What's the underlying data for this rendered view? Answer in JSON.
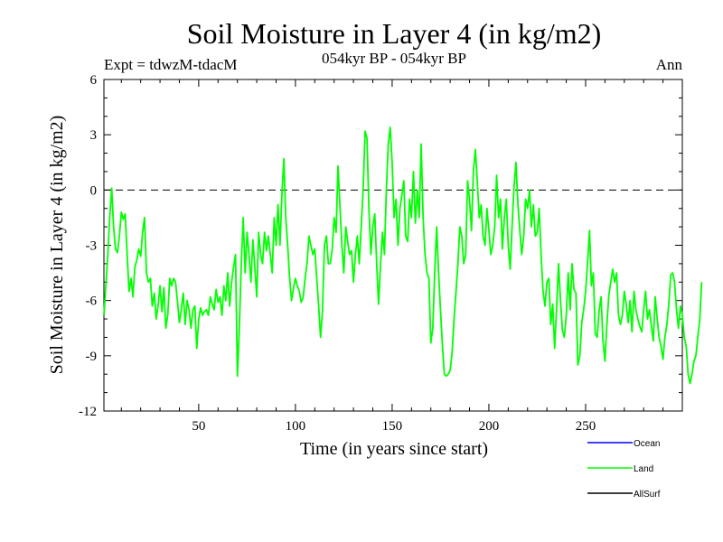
{
  "chart_data": {
    "type": "line",
    "title": "Soil Moisture in Layer 4 (in kg/m2)",
    "subtitle": "054kyr BP - 054kyr BP",
    "experiment": "Expt = tdwzM-tdacM",
    "season": "Ann",
    "xlabel": "Time (in years since start)",
    "ylabel": "Soil Moisture in Layer 4 (in kg/m2)",
    "xlim": [
      1,
      300
    ],
    "ylim": [
      -12,
      6
    ],
    "x_ticks": [
      50,
      100,
      150,
      200,
      250
    ],
    "y_ticks": [
      -12,
      -9,
      -6,
      -3,
      0,
      3,
      6
    ],
    "reference_line": 0,
    "grid": false,
    "legend_position": "bottom-right",
    "legend": [
      {
        "name": "Ocean",
        "color": "#0000ff"
      },
      {
        "name": "Land",
        "color": "#00ff00"
      },
      {
        "name": "AllSurf",
        "color": "#000000"
      }
    ],
    "series": [
      {
        "name": "Land",
        "color": "#00ff00",
        "x_start": 1,
        "x_step": 1,
        "values": [
          -6.8,
          -5.2,
          -3.5,
          -1.5,
          0.1,
          -2.0,
          -3.2,
          -3.4,
          -2.5,
          -1.2,
          -1.6,
          -1.3,
          -3.5,
          -5.5,
          -4.8,
          -5.8,
          -4.2,
          -3.8,
          -3.2,
          -3.6,
          -2.3,
          -1.5,
          -4.5,
          -5.0,
          -4.8,
          -6.3,
          -5.6,
          -7.0,
          -6.3,
          -5.2,
          -6.6,
          -5.3,
          -7.5,
          -6.8,
          -4.8,
          -5.2,
          -4.8,
          -5.0,
          -6.0,
          -7.2,
          -6.5,
          -5.6,
          -7.3,
          -6.0,
          -6.5,
          -7.5,
          -6.5,
          -6.3,
          -8.6,
          -7.0,
          -6.4,
          -6.8,
          -6.6,
          -6.5,
          -6.8,
          -5.8,
          -6.2,
          -6.5,
          -5.4,
          -6.1,
          -5.8,
          -6.8,
          -5.2,
          -6.0,
          -4.5,
          -6.3,
          -5.0,
          -4.2,
          -3.5,
          -10.1,
          -7.5,
          -4.0,
          -1.5,
          -4.5,
          -2.3,
          -3.5,
          -5.0,
          -2.7,
          -4.2,
          -5.8,
          -2.3,
          -3.5,
          -4.0,
          -2.3,
          -3.3,
          -2.5,
          -3.5,
          -4.5,
          -1.5,
          -3.0,
          -0.8,
          -3.0,
          -0.3,
          1.7,
          -1.5,
          -3.0,
          -4.8,
          -6.0,
          -5.3,
          -4.8,
          -5.2,
          -5.5,
          -6.1,
          -5.8,
          -4.8,
          -4.0,
          -2.5,
          -3.0,
          -3.5,
          -3.2,
          -4.8,
          -6.3,
          -8.0,
          -6.5,
          -3.0,
          -2.5,
          -4.0,
          -4.0,
          -3.2,
          -1.5,
          -2.3,
          1.3,
          -0.8,
          -3.0,
          -4.5,
          -2.0,
          -2.8,
          -3.5,
          -3.3,
          -5.0,
          -3.5,
          -2.5,
          -4.0,
          -2.0,
          0.0,
          3.2,
          2.8,
          -1.0,
          -3.5,
          -2.0,
          -1.3,
          -4.0,
          -6.2,
          -4.0,
          -2.3,
          -3.5,
          0.0,
          2.5,
          3.4,
          1.5,
          -1.5,
          -0.5,
          -3.0,
          -1.0,
          -0.3,
          0.5,
          -2.5,
          -2.8,
          -0.5,
          -1.5,
          1.0,
          -1.8,
          0.0,
          -1.5,
          2.5,
          -1.5,
          -3.5,
          -4.5,
          -4.8,
          -8.3,
          -7.5,
          -4.5,
          -2.0,
          -4.5,
          -6.5,
          -8.5,
          -10.0,
          -10.1,
          -10.0,
          -9.8,
          -8.8,
          -7.0,
          -5.5,
          -4.0,
          -2.0,
          -2.5,
          -4.0,
          -3.5,
          0.5,
          -0.5,
          -2.2,
          1.0,
          2.2,
          0.5,
          -1.5,
          -0.8,
          -2.5,
          -3.0,
          -1.0,
          -2.2,
          -3.5,
          -3.0,
          -2.0,
          0.8,
          -1.5,
          -0.5,
          -3.2,
          -1.5,
          -0.5,
          -3.0,
          -4.3,
          -2.0,
          0.2,
          1.5,
          -0.8,
          -2.2,
          -3.5,
          -2.5,
          -0.5,
          -1.0,
          0.0,
          -2.0,
          -0.8,
          -2.5,
          -2.3,
          -1.0,
          -3.5,
          -5.5,
          -6.3,
          -5.0,
          -4.8,
          -7.3,
          -6.2,
          -8.6,
          -6.4,
          -4.0,
          -6.0,
          -7.6,
          -8.0,
          -6.8,
          -4.5,
          -6.5,
          -4.0,
          -5.4,
          -5.6,
          -9.5,
          -9.0,
          -7.2,
          -6.5,
          -5.5,
          -4.0,
          -2.2,
          -5.2,
          -4.5,
          -7.8,
          -8.0,
          -6.5,
          -5.8,
          -8.2,
          -9.3,
          -7.3,
          -5.7,
          -5.0,
          -4.3,
          -5.0,
          -4.5,
          -6.8,
          -7.3,
          -6.8,
          -5.5,
          -6.2,
          -7.2,
          -6.0,
          -7.7,
          -5.5,
          -6.5,
          -7.0,
          -7.4,
          -7.7,
          -6.5,
          -5.5,
          -7.0,
          -6.5,
          -7.4,
          -8.2,
          -5.8,
          -7.0,
          -8.0,
          -8.5,
          -9.2,
          -8.0,
          -7.3,
          -6.2,
          -4.6,
          -4.5,
          -5.0,
          -6.5,
          -7.5,
          -6.3,
          -6.8,
          -8.0,
          -8.5,
          -10.0,
          -10.5,
          -10.0,
          -9.3,
          -9.0,
          -8.0,
          -7.0,
          -5.0
        ]
      }
    ]
  }
}
